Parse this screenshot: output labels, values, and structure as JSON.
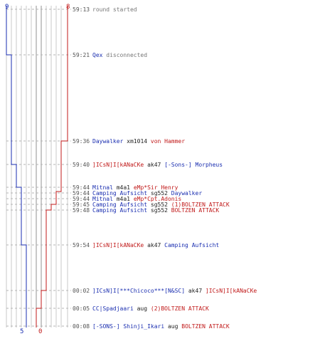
{
  "colors": {
    "blue_team": "#1a2eb0",
    "red_team": "#c01818",
    "neutral": "#777777",
    "time": "#555555",
    "grid": "#c8c8c8",
    "grid_dark": "#909090",
    "dash": "#b4b4b4"
  },
  "teams": {
    "blue": {
      "start_count": "9",
      "end_count": "5"
    },
    "red": {
      "start_count": "8",
      "end_count": "0"
    }
  },
  "events": [
    {
      "time": "59:13",
      "parts": [
        {
          "text": "round started",
          "team": "neutral"
        }
      ]
    },
    {
      "time": "59:21",
      "parts": [
        {
          "text": "Qex",
          "team": "blue"
        },
        {
          "text": " disconnected",
          "team": "neutral"
        }
      ]
    },
    {
      "time": "59:36",
      "parts": [
        {
          "text": "Daywalker",
          "team": "blue"
        },
        {
          "text": " xm1014 ",
          "team": "plain"
        },
        {
          "text": "von Hammer",
          "team": "red"
        }
      ]
    },
    {
      "time": "59:40",
      "parts": [
        {
          "text": "]ICsN]I[kANaCKe",
          "team": "red"
        },
        {
          "text": " ak47 ",
          "team": "plain"
        },
        {
          "text": "[-Sons-] Morpheus",
          "team": "blue"
        }
      ]
    },
    {
      "time": "59:44",
      "parts": [
        {
          "text": "Mitnal",
          "team": "blue"
        },
        {
          "text": " m4a1 ",
          "team": "plain"
        },
        {
          "text": "eMp*Sir Henry",
          "team": "red"
        }
      ]
    },
    {
      "time": "59:44",
      "parts": [
        {
          "text": "Camping Aufsicht",
          "team": "blue"
        },
        {
          "text": " sg552 ",
          "team": "plain"
        },
        {
          "text": "Daywalker",
          "team": "blue"
        }
      ]
    },
    {
      "time": "59:44",
      "parts": [
        {
          "text": "Mitnal",
          "team": "blue"
        },
        {
          "text": " m4a1 ",
          "team": "plain"
        },
        {
          "text": "eMp*Cpt.Adonis",
          "team": "red"
        }
      ]
    },
    {
      "time": "59:45",
      "parts": [
        {
          "text": "Camping Aufsicht",
          "team": "blue"
        },
        {
          "text": " sg552 ",
          "team": "plain"
        },
        {
          "text": "(1)BOLTZEN ATTACK",
          "team": "red"
        }
      ]
    },
    {
      "time": "59:48",
      "parts": [
        {
          "text": "Camping Aufsicht",
          "team": "blue"
        },
        {
          "text": " sg552 ",
          "team": "plain"
        },
        {
          "text": "BOLTZEN ATTACK",
          "team": "red"
        }
      ]
    },
    {
      "time": "59:54",
      "parts": [
        {
          "text": "]ICsN]I[kANaCKe",
          "team": "red"
        },
        {
          "text": " ak47 ",
          "team": "plain"
        },
        {
          "text": "Camping Aufsicht",
          "team": "blue"
        }
      ]
    },
    {
      "time": "00:02",
      "parts": [
        {
          "text": "]ICsN]I[***Chicoco***[N&SC]",
          "team": "blue"
        },
        {
          "text": " ak47 ",
          "team": "plain"
        },
        {
          "text": "]ICsN]I[kANaCKe",
          "team": "red"
        }
      ]
    },
    {
      "time": "00:05",
      "parts": [
        {
          "text": "CC|Spadjaari",
          "team": "blue"
        },
        {
          "text": " aug ",
          "team": "plain"
        },
        {
          "text": "(2)BOLTZEN ATTACK",
          "team": "red"
        }
      ]
    },
    {
      "time": "00:08",
      "parts": [
        {
          "text": "[-SONS-] Shinji_Ikari",
          "team": "blue"
        },
        {
          "text": " aug ",
          "team": "plain"
        },
        {
          "text": "BOLTZEN  ATTACK",
          "team": "red"
        }
      ]
    }
  ]
}
